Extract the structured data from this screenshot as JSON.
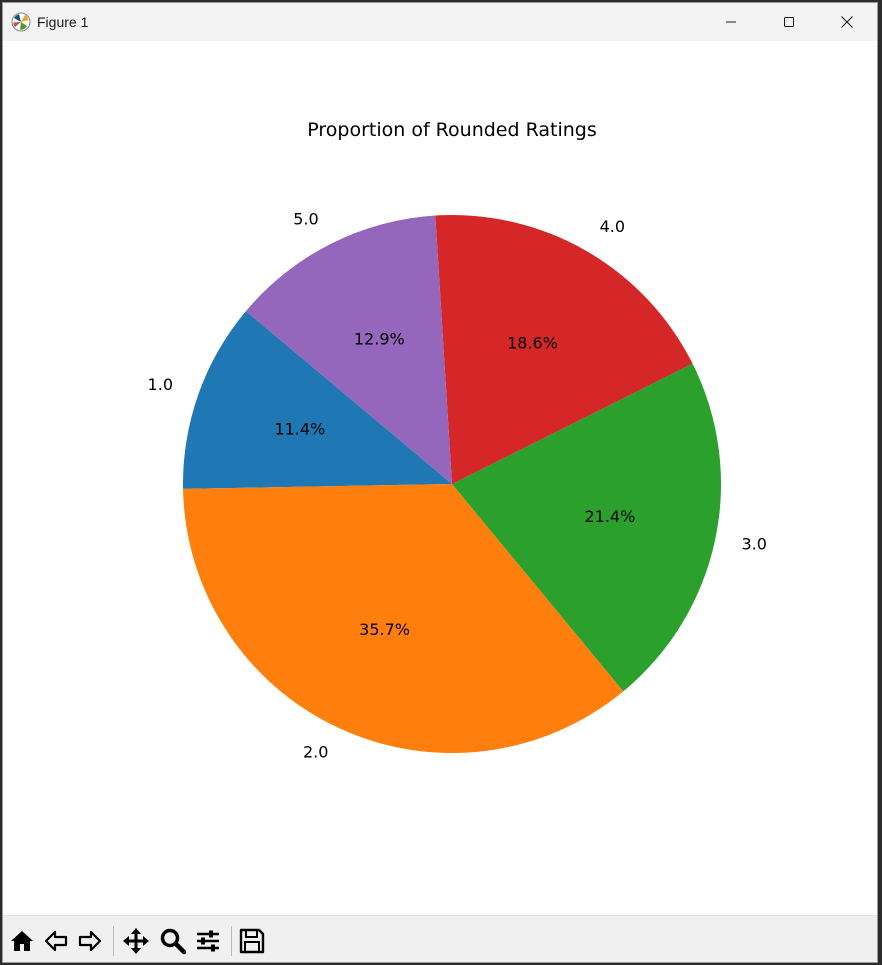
{
  "window": {
    "title": "Figure 1",
    "controls": [
      "minimize-icon",
      "maximize-icon",
      "close-icon"
    ]
  },
  "toolbar": {
    "buttons": [
      "home-icon",
      "back-icon",
      "forward-icon",
      "pan-icon",
      "zoom-icon",
      "configure-subplots-icon",
      "save-icon"
    ]
  },
  "chart_data": {
    "type": "pie",
    "title": "Proportion of Rounded Ratings",
    "categories": [
      "1.0",
      "2.0",
      "3.0",
      "4.0",
      "5.0"
    ],
    "values": [
      11.4,
      35.7,
      21.4,
      18.6,
      12.9
    ],
    "percent_labels": [
      "11.4%",
      "35.7%",
      "21.4%",
      "18.6%",
      "12.9%"
    ],
    "colors": [
      "#1f77b4",
      "#ff7f0e",
      "#2ca02c",
      "#d62728",
      "#9467bd"
    ],
    "start_angle_deg": 140,
    "direction": "counterclockwise",
    "legend": "none"
  }
}
